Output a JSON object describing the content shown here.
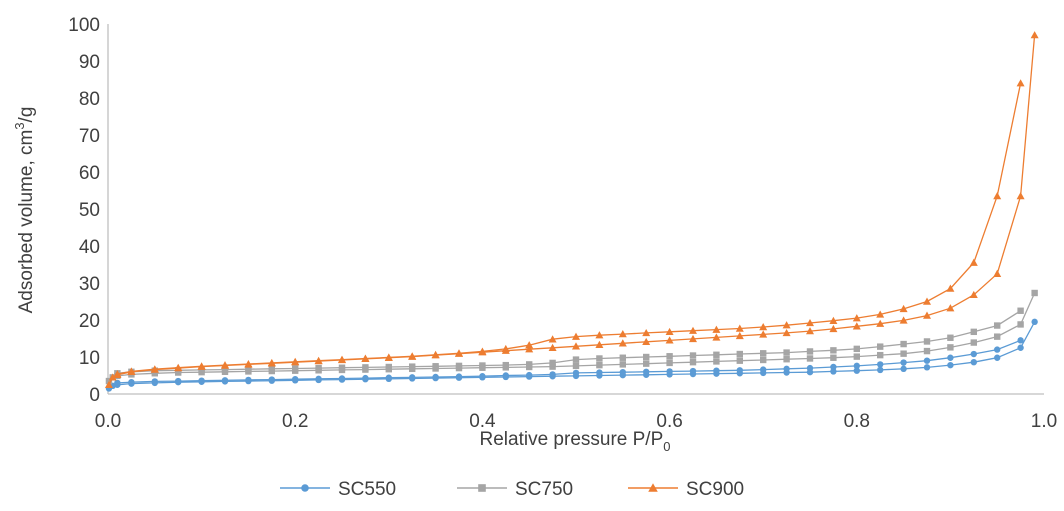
{
  "chart_data": {
    "type": "scatter",
    "xlabel": {
      "text": "Relative pressure P/P",
      "sub": "0"
    },
    "ylabel": {
      "text": "Adsorbed volume, cm",
      "sup": "3",
      "tail": "/g"
    },
    "xlim": [
      0,
      1.0
    ],
    "ylim": [
      0,
      100
    ],
    "x_ticks": [
      "0.0",
      "0.2",
      "0.4",
      "0.6",
      "0.8",
      "1.0"
    ],
    "y_ticks": [
      "0",
      "10",
      "20",
      "30",
      "40",
      "50",
      "60",
      "70",
      "80",
      "90",
      "100"
    ],
    "grid": false,
    "legend_position": "bottom",
    "series": [
      {
        "name": "SC550",
        "color": "#5B9BD5",
        "marker": "circle",
        "adsorption": [
          [
            0.001,
            1.5
          ],
          [
            0.005,
            2.2
          ],
          [
            0.01,
            2.5
          ],
          [
            0.025,
            2.8
          ],
          [
            0.05,
            3.0
          ],
          [
            0.075,
            3.2
          ],
          [
            0.1,
            3.3
          ],
          [
            0.125,
            3.4
          ],
          [
            0.15,
            3.5
          ],
          [
            0.175,
            3.6
          ],
          [
            0.2,
            3.7
          ],
          [
            0.225,
            3.8
          ],
          [
            0.25,
            3.9
          ],
          [
            0.275,
            4.0
          ],
          [
            0.3,
            4.1
          ],
          [
            0.325,
            4.2
          ],
          [
            0.35,
            4.3
          ],
          [
            0.375,
            4.4
          ],
          [
            0.4,
            4.5
          ],
          [
            0.425,
            4.6
          ],
          [
            0.45,
            4.7
          ],
          [
            0.475,
            4.8
          ],
          [
            0.5,
            4.9
          ],
          [
            0.525,
            5.0
          ],
          [
            0.55,
            5.1
          ],
          [
            0.575,
            5.2
          ],
          [
            0.6,
            5.3
          ],
          [
            0.625,
            5.4
          ],
          [
            0.65,
            5.5
          ],
          [
            0.675,
            5.6
          ],
          [
            0.7,
            5.7
          ],
          [
            0.725,
            5.8
          ],
          [
            0.75,
            5.9
          ],
          [
            0.775,
            6.1
          ],
          [
            0.8,
            6.3
          ],
          [
            0.825,
            6.5
          ],
          [
            0.85,
            6.8
          ],
          [
            0.875,
            7.2
          ],
          [
            0.9,
            7.8
          ],
          [
            0.925,
            8.6
          ],
          [
            0.95,
            9.8
          ],
          [
            0.975,
            12.5
          ],
          [
            0.99,
            19.5
          ]
        ],
        "desorption": [
          [
            0.975,
            14.5
          ],
          [
            0.95,
            12.0
          ],
          [
            0.925,
            10.8
          ],
          [
            0.9,
            9.8
          ],
          [
            0.875,
            9.0
          ],
          [
            0.85,
            8.5
          ],
          [
            0.825,
            8.0
          ],
          [
            0.8,
            7.6
          ],
          [
            0.775,
            7.3
          ],
          [
            0.75,
            7.0
          ],
          [
            0.725,
            6.8
          ],
          [
            0.7,
            6.6
          ],
          [
            0.675,
            6.4
          ],
          [
            0.65,
            6.3
          ],
          [
            0.625,
            6.2
          ],
          [
            0.6,
            6.1
          ],
          [
            0.575,
            6.0
          ],
          [
            0.55,
            5.9
          ],
          [
            0.525,
            5.8
          ],
          [
            0.5,
            5.7
          ],
          [
            0.475,
            5.3
          ],
          [
            0.45,
            5.1
          ],
          [
            0.425,
            5.0
          ],
          [
            0.4,
            4.8
          ],
          [
            0.375,
            4.7
          ],
          [
            0.35,
            4.6
          ],
          [
            0.325,
            4.5
          ],
          [
            0.3,
            4.4
          ],
          [
            0.275,
            4.3
          ],
          [
            0.25,
            4.2
          ],
          [
            0.225,
            4.1
          ],
          [
            0.2,
            4.0
          ],
          [
            0.175,
            3.9
          ],
          [
            0.15,
            3.8
          ],
          [
            0.125,
            3.7
          ],
          [
            0.1,
            3.6
          ],
          [
            0.075,
            3.5
          ],
          [
            0.05,
            3.4
          ],
          [
            0.025,
            3.2
          ],
          [
            0.01,
            3.0
          ]
        ]
      },
      {
        "name": "SC750",
        "color": "#A5A5A5",
        "marker": "square",
        "adsorption": [
          [
            0.001,
            3.5
          ],
          [
            0.005,
            4.5
          ],
          [
            0.01,
            4.9
          ],
          [
            0.025,
            5.3
          ],
          [
            0.05,
            5.6
          ],
          [
            0.075,
            5.8
          ],
          [
            0.1,
            5.9
          ],
          [
            0.125,
            6.0
          ],
          [
            0.15,
            6.1
          ],
          [
            0.175,
            6.2
          ],
          [
            0.2,
            6.3
          ],
          [
            0.225,
            6.4
          ],
          [
            0.25,
            6.5
          ],
          [
            0.275,
            6.6
          ],
          [
            0.3,
            6.7
          ],
          [
            0.325,
            6.8
          ],
          [
            0.35,
            6.9
          ],
          [
            0.375,
            7.0
          ],
          [
            0.4,
            7.1
          ],
          [
            0.425,
            7.2
          ],
          [
            0.45,
            7.3
          ],
          [
            0.475,
            7.4
          ],
          [
            0.5,
            7.6
          ],
          [
            0.525,
            7.8
          ],
          [
            0.55,
            8.0
          ],
          [
            0.575,
            8.2
          ],
          [
            0.6,
            8.4
          ],
          [
            0.625,
            8.6
          ],
          [
            0.65,
            8.8
          ],
          [
            0.675,
            9.0
          ],
          [
            0.7,
            9.2
          ],
          [
            0.725,
            9.4
          ],
          [
            0.75,
            9.6
          ],
          [
            0.775,
            9.8
          ],
          [
            0.8,
            10.1
          ],
          [
            0.825,
            10.5
          ],
          [
            0.85,
            10.9
          ],
          [
            0.875,
            11.6
          ],
          [
            0.9,
            12.6
          ],
          [
            0.925,
            13.9
          ],
          [
            0.95,
            15.5
          ],
          [
            0.975,
            18.8
          ],
          [
            0.99,
            27.3
          ]
        ],
        "desorption": [
          [
            0.975,
            22.5
          ],
          [
            0.95,
            18.5
          ],
          [
            0.925,
            16.8
          ],
          [
            0.9,
            15.2
          ],
          [
            0.875,
            14.2
          ],
          [
            0.85,
            13.5
          ],
          [
            0.825,
            12.8
          ],
          [
            0.8,
            12.2
          ],
          [
            0.775,
            11.8
          ],
          [
            0.75,
            11.5
          ],
          [
            0.725,
            11.2
          ],
          [
            0.7,
            11.0
          ],
          [
            0.675,
            10.8
          ],
          [
            0.65,
            10.6
          ],
          [
            0.625,
            10.4
          ],
          [
            0.6,
            10.2
          ],
          [
            0.575,
            10.0
          ],
          [
            0.55,
            9.8
          ],
          [
            0.525,
            9.6
          ],
          [
            0.5,
            9.3
          ],
          [
            0.475,
            8.4
          ],
          [
            0.45,
            8.0
          ],
          [
            0.425,
            7.8
          ],
          [
            0.4,
            7.7
          ],
          [
            0.375,
            7.6
          ],
          [
            0.35,
            7.5
          ],
          [
            0.325,
            7.4
          ],
          [
            0.3,
            7.3
          ],
          [
            0.275,
            7.2
          ],
          [
            0.25,
            7.1
          ],
          [
            0.225,
            7.0
          ],
          [
            0.2,
            6.9
          ],
          [
            0.175,
            6.8
          ],
          [
            0.15,
            6.7
          ],
          [
            0.125,
            6.6
          ],
          [
            0.1,
            6.5
          ],
          [
            0.075,
            6.4
          ],
          [
            0.05,
            6.3
          ],
          [
            0.025,
            6.0
          ],
          [
            0.01,
            5.6
          ]
        ]
      },
      {
        "name": "SC900",
        "color": "#ED7D31",
        "marker": "triangle",
        "adsorption": [
          [
            0.001,
            2.5
          ],
          [
            0.005,
            4.5
          ],
          [
            0.01,
            5.2
          ],
          [
            0.025,
            6.0
          ],
          [
            0.05,
            6.6
          ],
          [
            0.075,
            7.0
          ],
          [
            0.1,
            7.4
          ],
          [
            0.125,
            7.7
          ],
          [
            0.15,
            8.0
          ],
          [
            0.175,
            8.3
          ],
          [
            0.2,
            8.6
          ],
          [
            0.225,
            8.9
          ],
          [
            0.25,
            9.2
          ],
          [
            0.275,
            9.5
          ],
          [
            0.3,
            9.8
          ],
          [
            0.325,
            10.1
          ],
          [
            0.35,
            10.5
          ],
          [
            0.375,
            10.9
          ],
          [
            0.4,
            11.3
          ],
          [
            0.425,
            11.7
          ],
          [
            0.45,
            12.1
          ],
          [
            0.475,
            12.5
          ],
          [
            0.5,
            12.9
          ],
          [
            0.525,
            13.3
          ],
          [
            0.55,
            13.7
          ],
          [
            0.575,
            14.1
          ],
          [
            0.6,
            14.5
          ],
          [
            0.625,
            14.9
          ],
          [
            0.65,
            15.3
          ],
          [
            0.675,
            15.7
          ],
          [
            0.7,
            16.1
          ],
          [
            0.725,
            16.5
          ],
          [
            0.75,
            17.0
          ],
          [
            0.775,
            17.6
          ],
          [
            0.8,
            18.3
          ],
          [
            0.825,
            19.0
          ],
          [
            0.85,
            19.9
          ],
          [
            0.875,
            21.2
          ],
          [
            0.9,
            23.2
          ],
          [
            0.925,
            26.8
          ],
          [
            0.95,
            32.5
          ],
          [
            0.975,
            53.5
          ],
          [
            0.99,
            97.0
          ]
        ],
        "desorption": [
          [
            0.975,
            84.0
          ],
          [
            0.95,
            53.5
          ],
          [
            0.925,
            35.5
          ],
          [
            0.9,
            28.5
          ],
          [
            0.875,
            25.0
          ],
          [
            0.85,
            23.0
          ],
          [
            0.825,
            21.5
          ],
          [
            0.8,
            20.5
          ],
          [
            0.775,
            19.8
          ],
          [
            0.75,
            19.2
          ],
          [
            0.725,
            18.6
          ],
          [
            0.7,
            18.1
          ],
          [
            0.675,
            17.7
          ],
          [
            0.65,
            17.4
          ],
          [
            0.625,
            17.1
          ],
          [
            0.6,
            16.8
          ],
          [
            0.575,
            16.5
          ],
          [
            0.55,
            16.2
          ],
          [
            0.525,
            15.9
          ],
          [
            0.5,
            15.5
          ],
          [
            0.475,
            14.8
          ],
          [
            0.45,
            13.2
          ],
          [
            0.425,
            12.2
          ],
          [
            0.4,
            11.5
          ],
          [
            0.375,
            11.0
          ],
          [
            0.35,
            10.6
          ],
          [
            0.325,
            10.2
          ],
          [
            0.3,
            9.9
          ],
          [
            0.275,
            9.6
          ],
          [
            0.25,
            9.3
          ],
          [
            0.225,
            9.0
          ],
          [
            0.2,
            8.7
          ],
          [
            0.175,
            8.4
          ],
          [
            0.15,
            8.1
          ],
          [
            0.125,
            7.8
          ],
          [
            0.1,
            7.5
          ],
          [
            0.075,
            7.1
          ],
          [
            0.05,
            6.7
          ],
          [
            0.025,
            6.1
          ],
          [
            0.01,
            5.4
          ]
        ]
      }
    ]
  }
}
